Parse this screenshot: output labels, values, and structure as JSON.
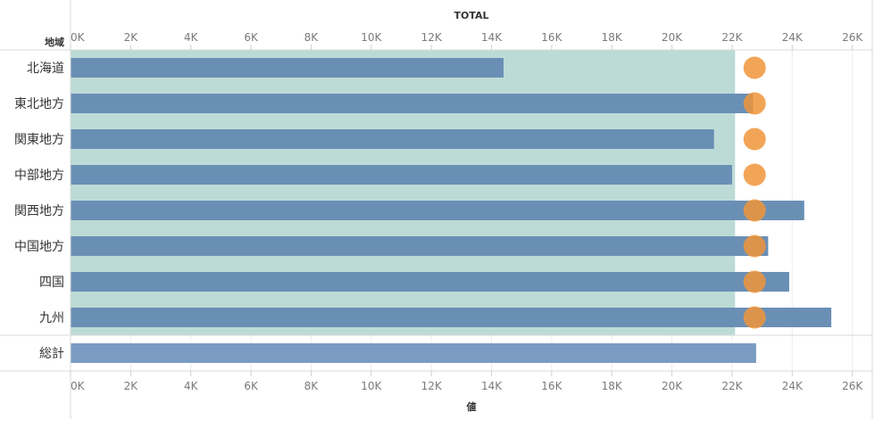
{
  "chart_data": {
    "type": "bar",
    "title": "TOTAL",
    "xlabel": "値",
    "ylabel": "地域",
    "xlim": [
      0,
      26000
    ],
    "ticks": [
      "0K",
      "2K",
      "4K",
      "6K",
      "8K",
      "10K",
      "12K",
      "14K",
      "16K",
      "18K",
      "20K",
      "22K",
      "24K",
      "26K"
    ],
    "tick_values": [
      0,
      2000,
      4000,
      6000,
      8000,
      10000,
      12000,
      14000,
      16000,
      18000,
      20000,
      22000,
      24000,
      26000
    ],
    "categories": [
      "北海道",
      "東北地方",
      "関東地方",
      "中部地方",
      "関西地方",
      "中国地方",
      "四国",
      "九州"
    ],
    "values": [
      14400,
      22700,
      21400,
      22000,
      24400,
      23200,
      23900,
      25300
    ],
    "reference_marker_values": [
      22750,
      22750,
      22750,
      22750,
      22750,
      22750,
      22750,
      22750
    ],
    "band_range": [
      0,
      22100
    ],
    "total": {
      "label": "総計",
      "value": 22800
    },
    "grid": true,
    "colors": {
      "bar": "#6a8fb5",
      "total_bar": "#7a9cc2",
      "marker": "#f0953a",
      "band": "#bddbd6"
    }
  }
}
